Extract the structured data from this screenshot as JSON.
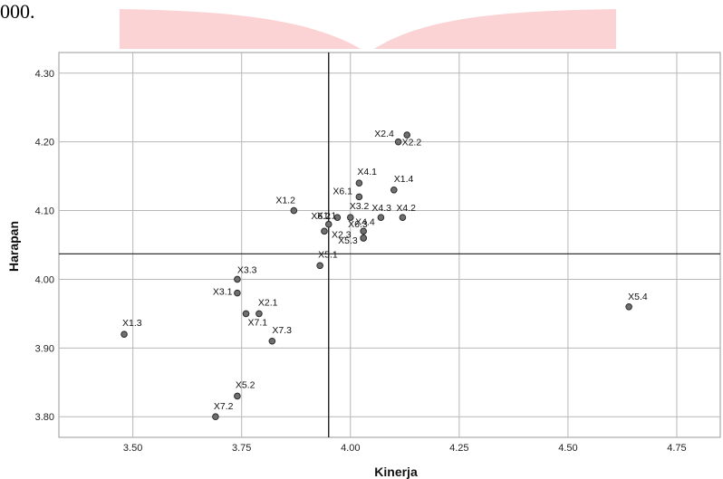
{
  "page": {
    "fragment_text": "000."
  },
  "colors": {
    "ribbon": "#fbd3d4",
    "grid": "#b7b7b7",
    "mean_line": "#333333",
    "point_fill": "#6f6f6f",
    "point_stroke": "#2a2a2a"
  },
  "chart_data": {
    "type": "scatter",
    "title": "",
    "xlabel": "Kinerja",
    "ylabel": "Harapan",
    "xlim": [
      3.33,
      4.85
    ],
    "ylim": [
      3.77,
      4.33
    ],
    "x_ticks": [
      3.5,
      3.75,
      4.0,
      4.25,
      4.5,
      4.75
    ],
    "x_tick_labels": [
      "3.50",
      "3.75",
      "4.00",
      "4.25",
      "4.50",
      "4.75"
    ],
    "y_ticks": [
      3.8,
      3.9,
      4.0,
      4.1,
      4.2,
      4.3
    ],
    "y_tick_labels": [
      "3.80",
      "3.90",
      "4.00",
      "4.10",
      "4.20",
      "4.30"
    ],
    "grid": true,
    "reference_lines": {
      "x": 3.95,
      "y": 4.037
    },
    "points": [
      {
        "label": "X1.1",
        "x": 3.95,
        "y": 4.08
      },
      {
        "label": "X1.2",
        "x": 3.87,
        "y": 4.1
      },
      {
        "label": "X1.3",
        "x": 3.48,
        "y": 3.92
      },
      {
        "label": "X1.4",
        "x": 4.1,
        "y": 4.13
      },
      {
        "label": "X2.1",
        "x": 3.79,
        "y": 3.95
      },
      {
        "label": "X2.2",
        "x": 4.11,
        "y": 4.2
      },
      {
        "label": "X2.3",
        "x": 3.94,
        "y": 4.07
      },
      {
        "label": "X2.4",
        "x": 4.13,
        "y": 4.21
      },
      {
        "label": "X3.1",
        "x": 3.74,
        "y": 3.98
      },
      {
        "label": "X3.2",
        "x": 4.0,
        "y": 4.09
      },
      {
        "label": "X3.3",
        "x": 3.74,
        "y": 4.0
      },
      {
        "label": "X4.1",
        "x": 4.02,
        "y": 4.14
      },
      {
        "label": "X4.2",
        "x": 4.12,
        "y": 4.09
      },
      {
        "label": "X4.3",
        "x": 4.07,
        "y": 4.09
      },
      {
        "label": "X4.4",
        "x": 4.03,
        "y": 4.07
      },
      {
        "label": "X5.1",
        "x": 3.93,
        "y": 4.02
      },
      {
        "label": "X5.2",
        "x": 3.74,
        "y": 3.83
      },
      {
        "label": "X5.3",
        "x": 4.03,
        "y": 4.06
      },
      {
        "label": "X5.4",
        "x": 4.64,
        "y": 3.96
      },
      {
        "label": "X6.1",
        "x": 4.02,
        "y": 4.12
      },
      {
        "label": "X6.2",
        "x": 3.97,
        "y": 4.09
      },
      {
        "label": "X6.3",
        "x": 4.03,
        "y": 4.06
      },
      {
        "label": "X7.1",
        "x": 3.76,
        "y": 3.95
      },
      {
        "label": "X7.2",
        "x": 3.69,
        "y": 3.8
      },
      {
        "label": "X7.3",
        "x": 3.82,
        "y": 3.91
      }
    ]
  }
}
